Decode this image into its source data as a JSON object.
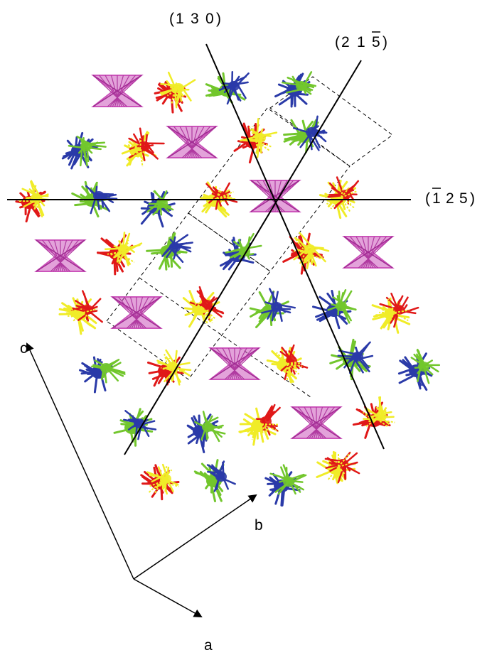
{
  "plane_labels": {
    "p130": {
      "h": "1",
      "k": "3",
      "l": "0"
    },
    "p21m5": {
      "h": "2",
      "k": "1",
      "l": "5",
      "l_bar": true
    },
    "pm125": {
      "h": "1",
      "h_bar": true,
      "k": "2",
      "l": "5"
    }
  },
  "axis_labels": {
    "a": "a",
    "b": "b",
    "c": "c"
  },
  "colors": {
    "magenta": "#cc55bb",
    "red": "#e01818",
    "yellow": "#f0ec28",
    "green": "#72c62c",
    "blue": "#2a3aa8"
  },
  "molecule_types": [
    "magenta",
    "red-yellow",
    "green-blue"
  ]
}
